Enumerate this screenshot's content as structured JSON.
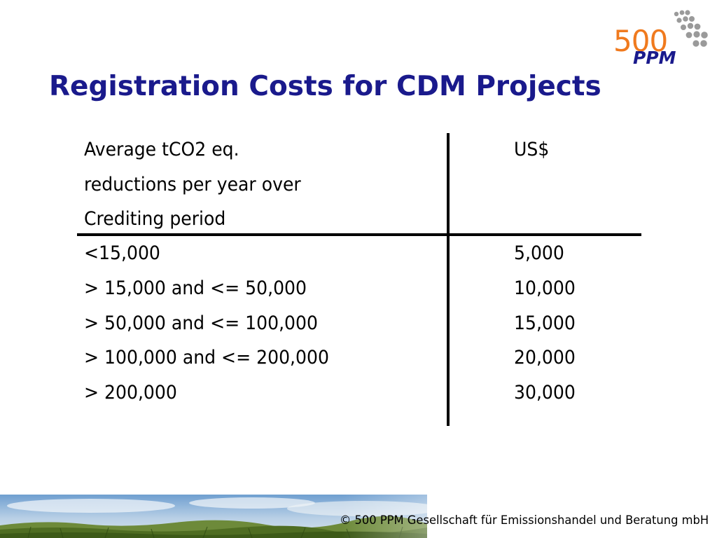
{
  "logo": {
    "number": "500",
    "acronym": "PPM"
  },
  "title": "Registration Costs for CDM Projects",
  "table": {
    "header": {
      "col1_lines": [
        "Average tCO2 eq.",
        "reductions per year over",
        "Crediting period"
      ],
      "col2": "US$"
    },
    "rows": [
      {
        "range": "<15,000",
        "cost": "5,000"
      },
      {
        "range": "> 15,000 and <= 50,000",
        "cost": "10,000"
      },
      {
        "range": "> 50,000 and <= 100,000",
        "cost": "15,000"
      },
      {
        "range": "> 100,000 and <= 200,000",
        "cost": "20,000"
      },
      {
        "range": "> 200,000",
        "cost": "30,000"
      }
    ]
  },
  "footer": {
    "copyright": "© 500 PPM Gesellschaft für Emissionshandel und Beratung mbH"
  },
  "colors": {
    "title": "#1a1a8c",
    "logo_number": "#f07a1e",
    "logo_acronym": "#1a1a8c",
    "logo_dots": "#9a9a9a"
  },
  "icons": {
    "logo_dots": "dots-arc-icon",
    "footer": "landscape-image"
  }
}
